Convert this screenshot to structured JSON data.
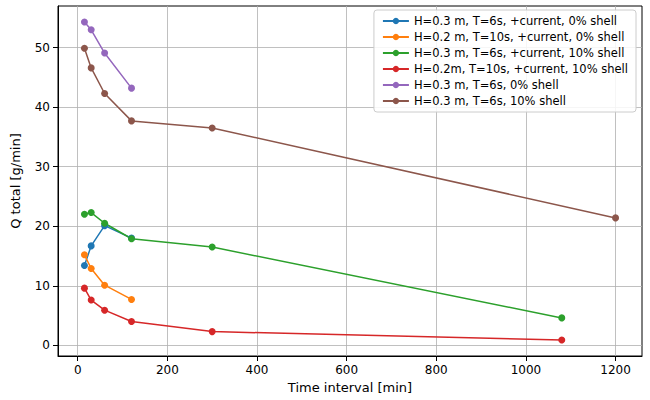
{
  "chart_data": {
    "type": "line",
    "x_label": "Time interval [min]",
    "y_label": "Q total [g/min]",
    "xlim": [
      -44,
      1259
    ],
    "xticks": [
      0,
      200,
      400,
      600,
      800,
      1000,
      1200
    ],
    "ylim": [
      -1.8,
      57
    ],
    "yticks": [
      0,
      10,
      20,
      30,
      40,
      50
    ],
    "grid": true,
    "legend": "upper right",
    "marker": "circle",
    "line_style": "solid",
    "series": [
      {
        "name": "H=0.3 m, T=6s, +current, 0% shell",
        "color": "#1f77b4",
        "x": [
          15,
          30,
          60,
          120
        ],
        "values": [
          13.4,
          16.7,
          20.1,
          18.0
        ]
      },
      {
        "name": "H=0.2 m, T=10s, +current, 0% shell",
        "color": "#ff7f0e",
        "x": [
          15,
          30,
          60,
          120
        ],
        "values": [
          15.2,
          12.9,
          10.1,
          7.7
        ]
      },
      {
        "name": "H=0.3 m, T=6s, +current, 10% shell",
        "color": "#2ca02c",
        "x": [
          15,
          30,
          60,
          120,
          300,
          1080
        ],
        "values": [
          22.0,
          22.3,
          20.5,
          17.9,
          16.5,
          4.6
        ]
      },
      {
        "name": "H=0.2m, T=10s, +current, 10% shell",
        "color": "#d62728",
        "x": [
          15,
          30,
          60,
          120,
          300,
          1080
        ],
        "values": [
          9.6,
          7.6,
          5.9,
          4.0,
          2.3,
          0.9
        ]
      },
      {
        "name": "H=0.3 m, T=6s, 0% shell",
        "color": "#9467bd",
        "x": [
          15,
          30,
          60,
          120
        ],
        "values": [
          54.3,
          53.0,
          49.1,
          43.2
        ]
      },
      {
        "name": "H=0.3 m, T=6s, 10% shell",
        "color": "#8c564b",
        "x": [
          15,
          30,
          60,
          120,
          300,
          1200
        ],
        "values": [
          49.9,
          46.6,
          42.3,
          37.7,
          36.5,
          21.4
        ]
      }
    ]
  }
}
